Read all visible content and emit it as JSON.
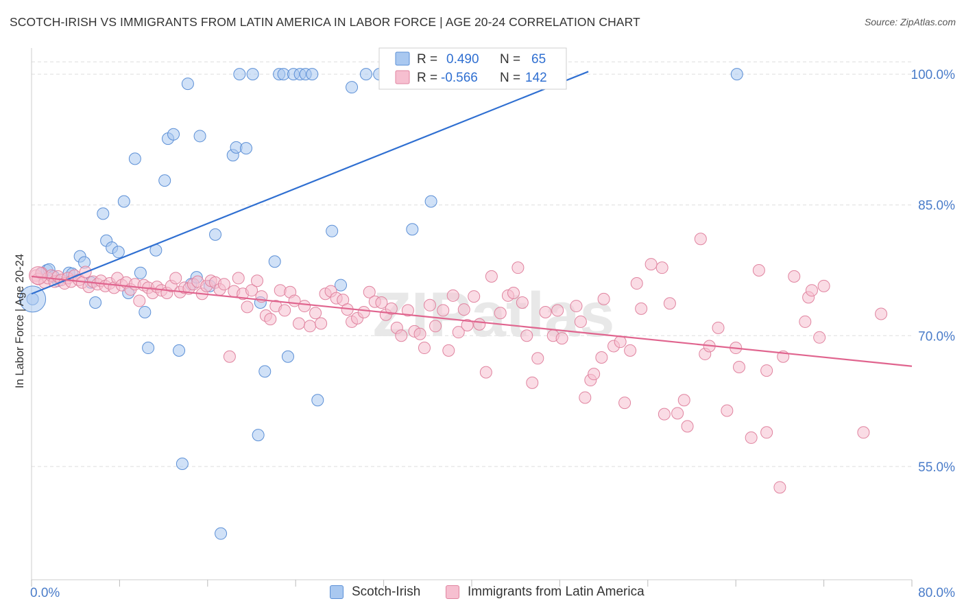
{
  "title": "SCOTCH-IRISH VS IMMIGRANTS FROM LATIN AMERICA IN LABOR FORCE | AGE 20-24 CORRELATION CHART",
  "source": "Source: ZipAtlas.com",
  "watermark": "ZIPatlas",
  "colors": {
    "blue_fill": "#a9c8f0",
    "blue_stroke": "#5b8fd6",
    "blue_line": "#2f6fd1",
    "pink_fill": "#f6bfd0",
    "pink_stroke": "#e0839f",
    "pink_line": "#e0648e",
    "axis_text": "#4a7cc9",
    "grid": "#dddddd"
  },
  "stats_legend": {
    "rows": [
      {
        "r_label": "R =",
        "r_value": "0.490",
        "n_label": "N =",
        "n_value": "65"
      },
      {
        "r_label": "R =",
        "r_value": "-0.566",
        "n_label": "N =",
        "n_value": "142"
      }
    ]
  },
  "chart_data": {
    "type": "scatter",
    "title": "SCOTCH-IRISH VS IMMIGRANTS FROM LATIN AMERICA IN LABOR FORCE | AGE 20-24 CORRELATION CHART",
    "xlabel": "",
    "ylabel": "In Labor Force | Age 20-24",
    "xlim": [
      0,
      80
    ],
    "ylim": [
      42,
      103
    ],
    "x_tick_labels": [
      "0.0%",
      "80.0%"
    ],
    "y_ticks": [
      55,
      70,
      85,
      100
    ],
    "y_tick_labels": [
      "55.0%",
      "70.0%",
      "85.0%",
      "100.0%"
    ],
    "grid": true,
    "legend_position": "bottom",
    "series": [
      {
        "name": "Scotch-Irish",
        "R": 0.49,
        "N": 65,
        "trend": {
          "x": [
            0,
            50.6
          ],
          "y": [
            74.8,
            100.3
          ]
        },
        "points": [
          [
            0.1,
            74.2
          ],
          [
            0.9,
            77.1
          ],
          [
            1.4,
            77.5
          ],
          [
            1.6,
            77.6
          ],
          [
            2.0,
            76.8
          ],
          [
            2.4,
            76.3
          ],
          [
            3.4,
            77.2
          ],
          [
            3.7,
            77.1
          ],
          [
            4.4,
            79.1
          ],
          [
            4.8,
            78.4
          ],
          [
            5.4,
            76.1
          ],
          [
            5.8,
            73.8
          ],
          [
            6.5,
            84.0
          ],
          [
            6.8,
            80.9
          ],
          [
            7.3,
            80.1
          ],
          [
            7.9,
            79.6
          ],
          [
            8.4,
            85.4
          ],
          [
            8.8,
            74.9
          ],
          [
            9.4,
            90.3
          ],
          [
            9.9,
            77.2
          ],
          [
            10.3,
            72.7
          ],
          [
            10.6,
            68.6
          ],
          [
            11.3,
            79.8
          ],
          [
            12.1,
            87.8
          ],
          [
            12.4,
            92.6
          ],
          [
            12.9,
            93.1
          ],
          [
            13.4,
            68.3
          ],
          [
            13.7,
            55.3
          ],
          [
            14.2,
            98.9
          ],
          [
            14.5,
            75.9
          ],
          [
            15.0,
            76.7
          ],
          [
            15.3,
            92.9
          ],
          [
            16.2,
            75.7
          ],
          [
            16.7,
            81.6
          ],
          [
            17.2,
            47.3
          ],
          [
            18.3,
            90.7
          ],
          [
            18.6,
            91.6
          ],
          [
            18.9,
            100.0
          ],
          [
            19.5,
            91.5
          ],
          [
            20.1,
            100.0
          ],
          [
            20.6,
            58.6
          ],
          [
            20.8,
            73.8
          ],
          [
            21.2,
            65.9
          ],
          [
            22.1,
            78.5
          ],
          [
            22.5,
            100.0
          ],
          [
            22.9,
            100.0
          ],
          [
            23.3,
            67.6
          ],
          [
            23.8,
            100.0
          ],
          [
            24.4,
            100.0
          ],
          [
            24.9,
            100.0
          ],
          [
            25.5,
            100.0
          ],
          [
            26.0,
            62.6
          ],
          [
            27.3,
            82.0
          ],
          [
            28.1,
            75.8
          ],
          [
            29.1,
            98.5
          ],
          [
            30.4,
            100.0
          ],
          [
            31.6,
            100.0
          ],
          [
            33.8,
            100.0
          ],
          [
            34.6,
            82.2
          ],
          [
            36.3,
            85.4
          ],
          [
            36.8,
            100.0
          ],
          [
            37.9,
            100.0
          ],
          [
            42.9,
            100.0
          ],
          [
            43.6,
            100.0
          ],
          [
            64.1,
            100.0
          ]
        ]
      },
      {
        "name": "Immigrants from Latin America",
        "R": -0.566,
        "N": 142,
        "trend": {
          "x": [
            0,
            80
          ],
          "y": [
            76.8,
            66.5
          ]
        },
        "points": [
          [
            0.4,
            76.9
          ],
          [
            0.6,
            76.5
          ],
          [
            0.9,
            77.2
          ],
          [
            1.2,
            76.1
          ],
          [
            1.5,
            76.6
          ],
          [
            1.8,
            76.9
          ],
          [
            2.1,
            76.2
          ],
          [
            2.4,
            76.8
          ],
          [
            2.7,
            76.4
          ],
          [
            3.0,
            76.0
          ],
          [
            3.3,
            76.6
          ],
          [
            3.6,
            76.2
          ],
          [
            3.9,
            76.9
          ],
          [
            4.3,
            76.4
          ],
          [
            4.6,
            76.1
          ],
          [
            4.9,
            77.3
          ],
          [
            5.2,
            75.6
          ],
          [
            5.6,
            76.2
          ],
          [
            6.0,
            75.9
          ],
          [
            6.3,
            76.3
          ],
          [
            6.7,
            75.7
          ],
          [
            7.1,
            76.0
          ],
          [
            7.5,
            75.5
          ],
          [
            7.8,
            76.6
          ],
          [
            8.2,
            75.8
          ],
          [
            8.6,
            76.1
          ],
          [
            9.0,
            75.3
          ],
          [
            9.4,
            75.9
          ],
          [
            9.8,
            74.0
          ],
          [
            10.2,
            75.8
          ],
          [
            10.6,
            75.5
          ],
          [
            11.0,
            74.9
          ],
          [
            11.4,
            75.6
          ],
          [
            11.8,
            75.2
          ],
          [
            12.3,
            74.9
          ],
          [
            12.7,
            75.7
          ],
          [
            13.1,
            76.6
          ],
          [
            13.5,
            75.0
          ],
          [
            13.9,
            75.5
          ],
          [
            14.3,
            75.4
          ],
          [
            14.7,
            75.9
          ],
          [
            15.1,
            76.2
          ],
          [
            15.5,
            74.8
          ],
          [
            15.9,
            75.7
          ],
          [
            16.3,
            76.3
          ],
          [
            16.7,
            76.1
          ],
          [
            17.1,
            75.3
          ],
          [
            17.5,
            75.9
          ],
          [
            18.0,
            67.6
          ],
          [
            18.4,
            75.1
          ],
          [
            18.8,
            76.6
          ],
          [
            19.2,
            74.8
          ],
          [
            19.6,
            73.3
          ],
          [
            20.0,
            75.2
          ],
          [
            20.5,
            76.3
          ],
          [
            20.9,
            74.5
          ],
          [
            21.3,
            72.3
          ],
          [
            21.7,
            71.9
          ],
          [
            22.2,
            73.4
          ],
          [
            22.6,
            75.2
          ],
          [
            23.0,
            72.9
          ],
          [
            23.5,
            75.0
          ],
          [
            23.9,
            74.0
          ],
          [
            24.3,
            71.4
          ],
          [
            24.8,
            73.4
          ],
          [
            25.3,
            71.1
          ],
          [
            25.8,
            72.6
          ],
          [
            26.3,
            71.4
          ],
          [
            26.7,
            74.8
          ],
          [
            27.2,
            75.1
          ],
          [
            27.7,
            74.3
          ],
          [
            28.3,
            74.1
          ],
          [
            28.7,
            73.0
          ],
          [
            29.1,
            71.6
          ],
          [
            29.6,
            72.0
          ],
          [
            30.2,
            72.7
          ],
          [
            30.7,
            75.0
          ],
          [
            31.2,
            73.9
          ],
          [
            31.8,
            73.8
          ],
          [
            32.2,
            72.4
          ],
          [
            32.7,
            73.1
          ],
          [
            33.2,
            70.9
          ],
          [
            33.6,
            70.0
          ],
          [
            34.2,
            72.9
          ],
          [
            34.8,
            70.5
          ],
          [
            35.3,
            70.2
          ],
          [
            35.7,
            68.6
          ],
          [
            36.2,
            73.5
          ],
          [
            36.7,
            71.1
          ],
          [
            37.4,
            72.9
          ],
          [
            37.9,
            68.3
          ],
          [
            38.3,
            74.6
          ],
          [
            38.8,
            70.4
          ],
          [
            39.3,
            73.0
          ],
          [
            39.6,
            71.2
          ],
          [
            40.2,
            74.5
          ],
          [
            40.7,
            71.3
          ],
          [
            41.3,
            65.8
          ],
          [
            41.8,
            76.8
          ],
          [
            42.6,
            72.6
          ],
          [
            43.3,
            74.6
          ],
          [
            43.8,
            74.9
          ],
          [
            44.2,
            77.8
          ],
          [
            44.6,
            73.8
          ],
          [
            45.0,
            70.0
          ],
          [
            45.5,
            64.6
          ],
          [
            46.0,
            67.4
          ],
          [
            46.7,
            72.7
          ],
          [
            47.4,
            70.0
          ],
          [
            47.8,
            72.9
          ],
          [
            48.2,
            69.7
          ],
          [
            49.5,
            73.4
          ],
          [
            49.9,
            71.6
          ],
          [
            50.3,
            62.9
          ],
          [
            50.8,
            64.9
          ],
          [
            51.1,
            65.6
          ],
          [
            51.8,
            67.5
          ],
          [
            52.0,
            74.2
          ],
          [
            52.9,
            68.8
          ],
          [
            53.5,
            69.3
          ],
          [
            53.9,
            62.3
          ],
          [
            54.4,
            68.3
          ],
          [
            55.0,
            76.0
          ],
          [
            55.4,
            73.1
          ],
          [
            56.3,
            78.2
          ],
          [
            57.3,
            77.8
          ],
          [
            57.5,
            61.0
          ],
          [
            58.0,
            73.7
          ],
          [
            58.7,
            61.1
          ],
          [
            59.3,
            62.6
          ],
          [
            59.6,
            59.6
          ],
          [
            60.8,
            81.1
          ],
          [
            61.2,
            67.9
          ],
          [
            61.6,
            68.8
          ],
          [
            62.4,
            70.9
          ],
          [
            63.2,
            61.4
          ],
          [
            64.0,
            68.6
          ],
          [
            64.3,
            66.4
          ],
          [
            65.4,
            58.3
          ],
          [
            66.1,
            77.5
          ],
          [
            66.8,
            58.9
          ],
          [
            66.8,
            66.0
          ],
          [
            68.0,
            52.6
          ],
          [
            68.3,
            67.6
          ],
          [
            69.3,
            76.8
          ],
          [
            70.3,
            71.6
          ],
          [
            70.6,
            74.4
          ],
          [
            70.9,
            75.2
          ],
          [
            71.6,
            69.8
          ],
          [
            72.0,
            75.7
          ],
          [
            75.6,
            58.9
          ],
          [
            77.2,
            72.5
          ]
        ]
      }
    ]
  }
}
